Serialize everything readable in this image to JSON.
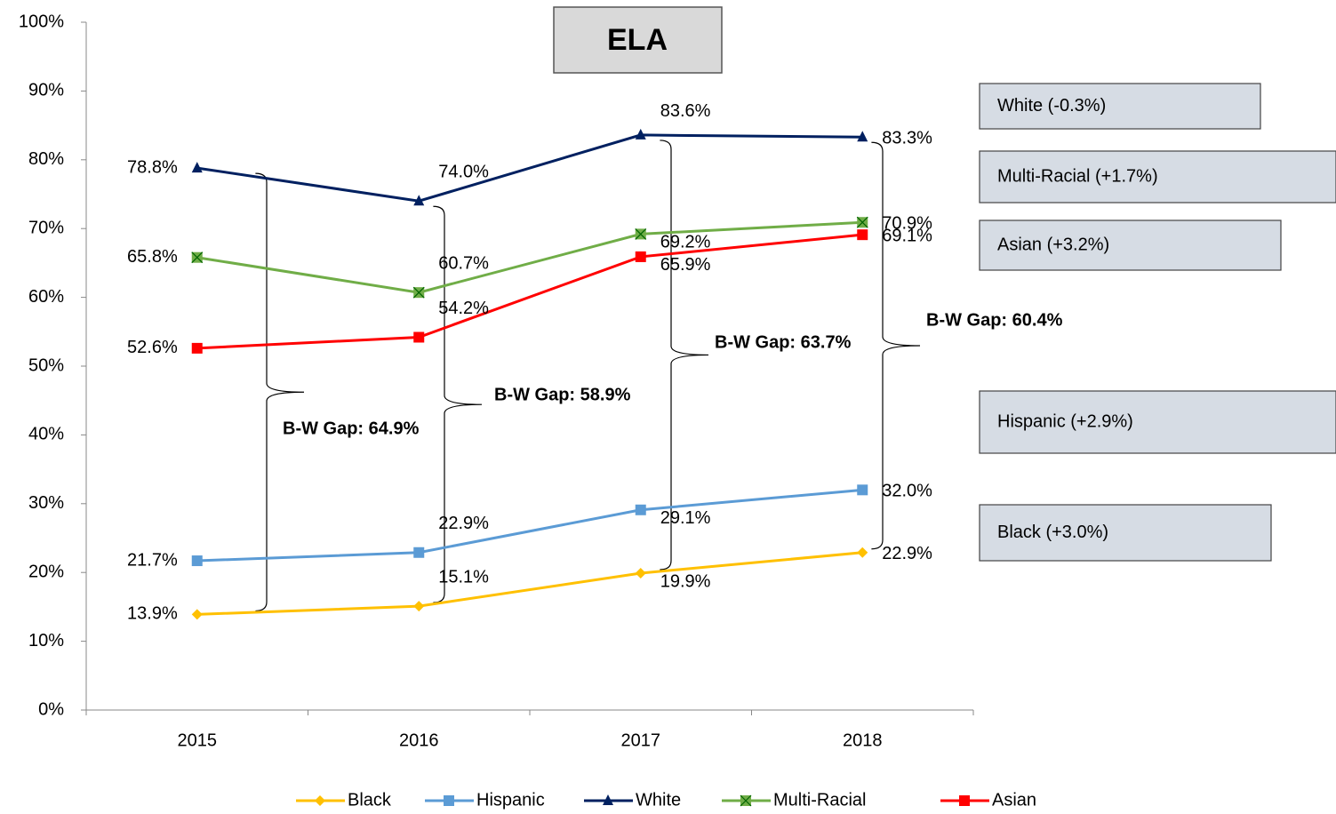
{
  "chart_data": {
    "type": "line",
    "title": "ELA",
    "categories": [
      "2015",
      "2016",
      "2017",
      "2018"
    ],
    "ylim": [
      0,
      100
    ],
    "yticks": [
      {
        "value": 0,
        "label": "0%"
      },
      {
        "value": 10,
        "label": "10%"
      },
      {
        "value": 20,
        "label": "20%"
      },
      {
        "value": 30,
        "label": "30%"
      },
      {
        "value": 40,
        "label": "40%"
      },
      {
        "value": 50,
        "label": "50%"
      },
      {
        "value": 60,
        "label": "60%"
      },
      {
        "value": 70,
        "label": "70%"
      },
      {
        "value": 80,
        "label": "80%"
      },
      {
        "value": 90,
        "label": "90%"
      },
      {
        "value": 100,
        "label": "100%"
      }
    ],
    "legend": "bottom",
    "series": [
      {
        "name": "Black",
        "color": "#FFC000",
        "marker": "diamond",
        "values": [
          13.9,
          15.1,
          19.9,
          22.9
        ],
        "value_labels": [
          "13.9%",
          "15.1%",
          "19.9%",
          "22.9%"
        ]
      },
      {
        "name": "Hispanic",
        "color": "#5B9BD5",
        "marker": "square",
        "values": [
          21.7,
          22.9,
          29.1,
          32.0
        ],
        "value_labels": [
          "21.7%",
          "22.9%",
          "29.1%",
          "32.0%"
        ]
      },
      {
        "name": "White",
        "color": "#002060",
        "marker": "triangle",
        "values": [
          78.8,
          74.0,
          83.6,
          83.3
        ],
        "value_labels": [
          "78.8%",
          "74.0%",
          "83.6%",
          "83.3%"
        ]
      },
      {
        "name": "Multi-Racial",
        "color": "#70AD47",
        "marker": "square-x",
        "values": [
          65.8,
          60.7,
          69.2,
          70.9
        ],
        "value_labels": [
          "65.8%",
          "60.7%",
          "69.2%",
          "70.9%"
        ]
      },
      {
        "name": "Asian",
        "color": "#FF0000",
        "marker": "square",
        "values": [
          52.6,
          54.2,
          65.9,
          69.1
        ],
        "value_labels": [
          "52.6%",
          "54.2%",
          "65.9%",
          "69.1%"
        ]
      }
    ],
    "gap_annotations": [
      "B-W Gap: 64.9%",
      "B-W Gap: 58.9%",
      "B-W Gap: 63.7%",
      "B-W Gap: 60.4%"
    ],
    "change_boxes": [
      "White (-0.3%)",
      "Multi-Racial (+1.7%)",
      "Asian (+3.2%)",
      "Hispanic (+2.9%)",
      "Black (+3.0%)"
    ]
  }
}
